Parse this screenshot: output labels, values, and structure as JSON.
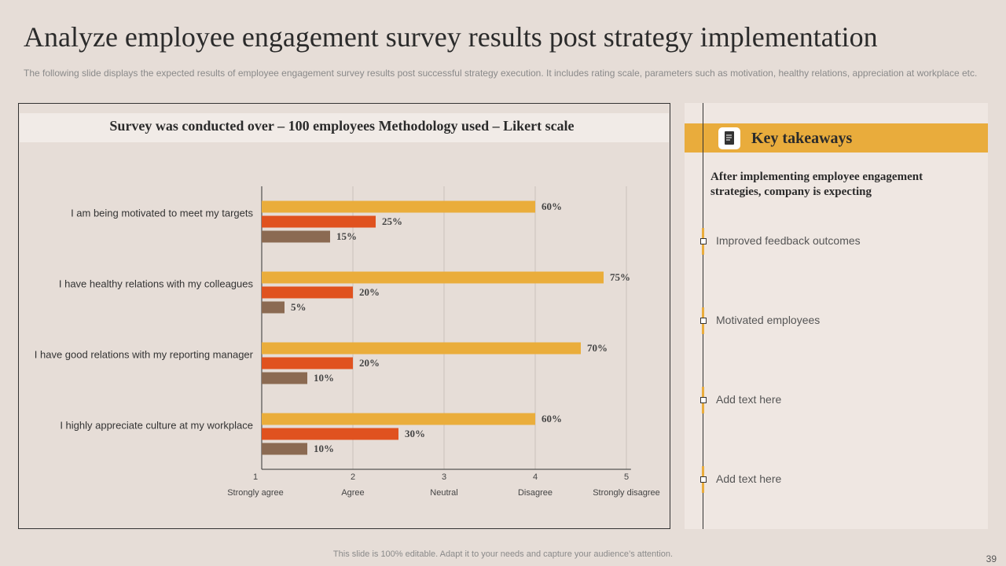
{
  "header": {
    "title": "Analyze employee engagement survey results post strategy implementation",
    "subtitle": "The following slide displays the expected results of employee engagement survey results post successful strategy execution. It includes rating scale, parameters such as motivation, healthy relations, appreciation at workplace etc."
  },
  "chart_data": {
    "type": "bar",
    "orientation": "horizontal",
    "title": "Survey was conducted over – 100 employees Methodology used – Likert scale",
    "categories": [
      "I am being motivated to meet my targets",
      "I have healthy relations with my colleagues",
      "I have good relations with my reporting manager",
      "I highly appreciate culture at my workplace"
    ],
    "series": [
      {
        "color": "#eaad3b",
        "values": [
          60,
          75,
          70,
          60
        ],
        "value_labels": [
          "60%",
          "75%",
          "70%",
          "60%"
        ]
      },
      {
        "color": "#e0521f",
        "values": [
          25,
          20,
          20,
          30
        ],
        "value_labels": [
          "25%",
          "20%",
          "20%",
          "30%"
        ]
      },
      {
        "color": "#8b6a52",
        "values": [
          15,
          5,
          10,
          10
        ],
        "value_labels": [
          "15%",
          "5%",
          "10%",
          "10%"
        ]
      }
    ],
    "xlim": [
      0,
      81
    ],
    "xticks": [
      {
        "value": 0,
        "label": "1"
      },
      {
        "value": 20,
        "label": "2"
      },
      {
        "value": 40,
        "label": "3"
      },
      {
        "value": 60,
        "label": "4"
      },
      {
        "value": 80,
        "label": "5"
      }
    ],
    "xtick_terms": [
      "Strongly agree",
      "Agree",
      "Neutral",
      "Disagree",
      "Strongly disagree"
    ],
    "grid": true
  },
  "takeaways": {
    "title": "Key takeaways",
    "intro": "After implementing employee engagement strategies, company is expecting",
    "items": [
      "Improved  feedback outcomes",
      "Motivated  employees",
      "Add text here",
      "Add text here"
    ]
  },
  "footer": {
    "note": "This slide is 100% editable.  Adapt it to your needs and capture your audience’s attention.",
    "page": "39"
  }
}
